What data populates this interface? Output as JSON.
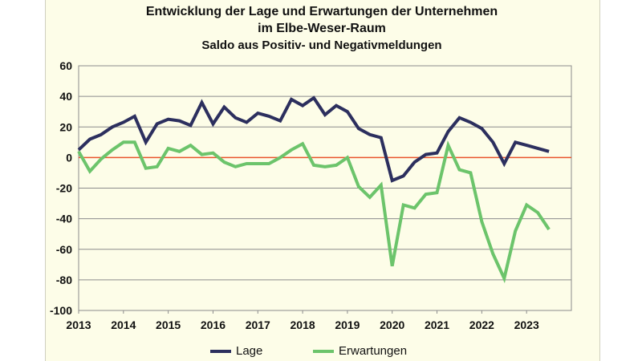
{
  "chart_data": {
    "type": "line",
    "title": "Entwicklung der Lage und Erwartungen der Unternehmen",
    "title_line2": "im Elbe-Weser-Raum",
    "subtitle": "Saldo aus Positiv- und Negativmeldungen",
    "xlabel": "",
    "ylabel": "",
    "ylim": [
      -100,
      60
    ],
    "yticks": [
      60,
      40,
      20,
      0,
      -20,
      -40,
      -60,
      -80,
      -100
    ],
    "xlim": [
      2013,
      2024
    ],
    "xticks": [
      "2013",
      "2014",
      "2015",
      "2016",
      "2017",
      "2018",
      "2019",
      "2020",
      "2021",
      "2022",
      "2023"
    ],
    "grid": true,
    "legend_position": "bottom",
    "reference_line": {
      "value": 0,
      "color": "#e8542c"
    },
    "series": [
      {
        "name": "Lage",
        "color": "#2c2f5e",
        "x": [
          2013.0,
          2013.25,
          2013.5,
          2013.75,
          2014.0,
          2014.25,
          2014.5,
          2014.75,
          2015.0,
          2015.25,
          2015.5,
          2015.75,
          2016.0,
          2016.25,
          2016.5,
          2016.75,
          2017.0,
          2017.25,
          2017.5,
          2017.75,
          2018.0,
          2018.25,
          2018.5,
          2018.75,
          2019.0,
          2019.25,
          2019.5,
          2019.75,
          2020.0,
          2020.25,
          2020.5,
          2020.75,
          2021.0,
          2021.25,
          2021.5,
          2021.75,
          2022.0,
          2022.25,
          2022.5,
          2022.75,
          2023.0,
          2023.25,
          2023.5
        ],
        "values": [
          5,
          12,
          15,
          20,
          23,
          27,
          10,
          22,
          25,
          24,
          21,
          36,
          22,
          33,
          26,
          23,
          29,
          27,
          24,
          38,
          34,
          39,
          28,
          34,
          30,
          19,
          15,
          13,
          -15,
          -12,
          -3,
          2,
          3,
          17,
          26,
          23,
          19,
          10,
          -4,
          10,
          8,
          6,
          4
        ]
      },
      {
        "name": "Erwartungen",
        "color": "#6cc46b",
        "x": [
          2013.0,
          2013.25,
          2013.5,
          2013.75,
          2014.0,
          2014.25,
          2014.5,
          2014.75,
          2015.0,
          2015.25,
          2015.5,
          2015.75,
          2016.0,
          2016.25,
          2016.5,
          2016.75,
          2017.0,
          2017.25,
          2017.5,
          2017.75,
          2018.0,
          2018.25,
          2018.5,
          2018.75,
          2019.0,
          2019.25,
          2019.5,
          2019.75,
          2020.0,
          2020.25,
          2020.5,
          2020.75,
          2021.0,
          2021.25,
          2021.5,
          2021.75,
          2022.0,
          2022.25,
          2022.5,
          2022.75,
          2023.0,
          2023.25,
          2023.5
        ],
        "values": [
          4,
          -9,
          -1,
          5,
          10,
          10,
          -7,
          -6,
          6,
          4,
          8,
          2,
          3,
          -3,
          -6,
          -4,
          -4,
          -4,
          0,
          5,
          9,
          -5,
          -6,
          -5,
          0,
          -19,
          -26,
          -18,
          -71,
          -31,
          -33,
          -24,
          -23,
          8,
          -8,
          -10,
          -42,
          -63,
          -79,
          -48,
          -31,
          -36,
          -47
        ]
      }
    ]
  }
}
